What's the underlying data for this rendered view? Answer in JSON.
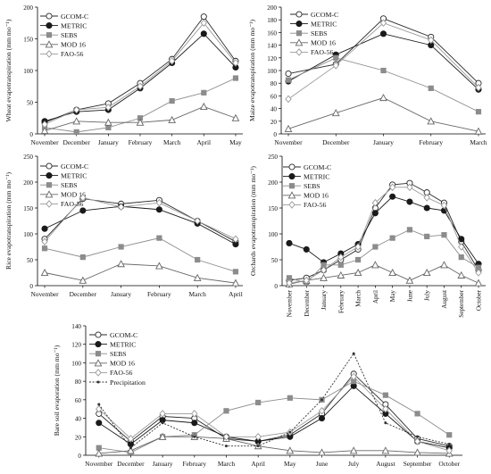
{
  "chart_data": [
    {
      "type": "line",
      "ylabel": "Wheat evapotranspiration (mm mo⁻¹)",
      "xlabel": "",
      "categories": [
        "November",
        "December",
        "January",
        "February",
        "March",
        "April",
        "May"
      ],
      "ylim": [
        0,
        200
      ],
      "yticks": [
        0,
        50,
        100,
        150,
        200
      ],
      "legend": "top-left",
      "series": [
        {
          "name": "GCOM-C",
          "marker": "circle-open",
          "values": [
            18,
            38,
            48,
            80,
            118,
            185,
            115
          ]
        },
        {
          "name": "METRIC",
          "marker": "circle-filled",
          "values": [
            20,
            35,
            38,
            72,
            112,
            158,
            105
          ]
        },
        {
          "name": "SEBS",
          "marker": "square-filled",
          "values": [
            10,
            3,
            10,
            25,
            52,
            65,
            88
          ]
        },
        {
          "name": "MOD 16",
          "marker": "triangle-open",
          "values": [
            5,
            20,
            18,
            18,
            22,
            43,
            25
          ]
        },
        {
          "name": "FAO-56",
          "marker": "diamond-open",
          "values": [
            15,
            38,
            42,
            75,
            115,
            175,
            112
          ]
        }
      ]
    },
    {
      "type": "line",
      "ylabel": "Maize evapotranspiration (mm mo⁻¹)",
      "xlabel": "",
      "categories": [
        "November",
        "December",
        "January",
        "February",
        "March"
      ],
      "ylim": [
        0,
        200
      ],
      "yticks": [
        0,
        20,
        40,
        60,
        80,
        100,
        120,
        140,
        160,
        180,
        200
      ],
      "legend": "top-left",
      "series": [
        {
          "name": "GCOM-C",
          "marker": "circle-open",
          "values": [
            95,
            110,
            182,
            153,
            80
          ]
        },
        {
          "name": "METRIC",
          "marker": "circle-filled",
          "values": [
            83,
            125,
            158,
            140,
            70
          ]
        },
        {
          "name": "SEBS",
          "marker": "square-filled",
          "values": [
            85,
            120,
            100,
            72,
            35
          ]
        },
        {
          "name": "MOD 16",
          "marker": "triangle-open",
          "values": [
            8,
            33,
            57,
            20,
            4
          ]
        },
        {
          "name": "FAO-56",
          "marker": "diamond-open",
          "values": [
            55,
            108,
            175,
            148,
            73
          ]
        }
      ]
    },
    {
      "type": "line",
      "ylabel": "Rice evapotranspiration (mm mo⁻¹)",
      "xlabel": "",
      "categories": [
        "November",
        "December",
        "January",
        "February",
        "March",
        "April"
      ],
      "ylim": [
        0,
        250
      ],
      "yticks": [
        0,
        50,
        100,
        150,
        200,
        250
      ],
      "legend": "top-left",
      "series": [
        {
          "name": "GCOM-C",
          "marker": "circle-open",
          "values": [
            90,
            168,
            158,
            165,
            125,
            85
          ]
        },
        {
          "name": "METRIC",
          "marker": "circle-filled",
          "values": [
            110,
            145,
            153,
            147,
            120,
            80
          ]
        },
        {
          "name": "SEBS",
          "marker": "square-filled",
          "values": [
            72,
            55,
            75,
            92,
            50,
            27
          ]
        },
        {
          "name": "MOD 16",
          "marker": "triangle-open",
          "values": [
            25,
            10,
            42,
            38,
            15,
            5
          ]
        },
        {
          "name": "FAO-56",
          "marker": "diamond-open",
          "values": [
            85,
            170,
            152,
            160,
            125,
            90
          ]
        }
      ]
    },
    {
      "type": "line",
      "ylabel": "Orchards evapotranspiration (mm mo⁻¹)",
      "xlabel": "",
      "categories": [
        "November",
        "December",
        "January",
        "February",
        "March",
        "April",
        "May",
        "June",
        "July",
        "August",
        "September",
        "October"
      ],
      "ylim": [
        0,
        250
      ],
      "yticks": [
        0,
        50,
        100,
        150,
        200,
        250
      ],
      "legend": "top-left",
      "series": [
        {
          "name": "GCOM-C",
          "marker": "circle-open",
          "values": [
            10,
            15,
            30,
            50,
            70,
            150,
            195,
            198,
            180,
            160,
            85,
            30
          ]
        },
        {
          "name": "METRIC",
          "marker": "circle-filled",
          "values": [
            82,
            70,
            45,
            62,
            80,
            140,
            172,
            162,
            150,
            145,
            90,
            42
          ]
        },
        {
          "name": "SEBS",
          "marker": "square-filled",
          "values": [
            15,
            5,
            40,
            40,
            50,
            75,
            92,
            108,
            95,
            98,
            55,
            35
          ]
        },
        {
          "name": "MOD 16",
          "marker": "triangle-open",
          "values": [
            3,
            10,
            15,
            20,
            25,
            40,
            25,
            10,
            25,
            40,
            20,
            5
          ]
        },
        {
          "name": "FAO-56",
          "marker": "diamond-open",
          "values": [
            5,
            10,
            30,
            55,
            75,
            160,
            190,
            190,
            170,
            155,
            75,
            25
          ]
        }
      ]
    },
    {
      "type": "line",
      "ylabel": "Bare soil evaporation (mm mo⁻¹)",
      "xlabel": "",
      "categories": [
        "November",
        "December",
        "January",
        "February",
        "March",
        "April",
        "May",
        "June",
        "July",
        "August",
        "September",
        "October"
      ],
      "ylim": [
        0,
        140
      ],
      "yticks": [
        0,
        20,
        40,
        60,
        80,
        100,
        120,
        140
      ],
      "legend": "top-left",
      "series": [
        {
          "name": "GCOM-C",
          "marker": "circle-open",
          "values": [
            45,
            15,
            42,
            40,
            18,
            15,
            22,
            45,
            88,
            55,
            18,
            10
          ]
        },
        {
          "name": "METRIC",
          "marker": "circle-filled",
          "values": [
            35,
            12,
            38,
            35,
            20,
            15,
            20,
            40,
            75,
            45,
            15,
            8
          ]
        },
        {
          "name": "SEBS",
          "marker": "square-filled",
          "values": [
            8,
            3,
            20,
            22,
            48,
            57,
            62,
            60,
            80,
            65,
            45,
            22
          ]
        },
        {
          "name": "MOD 16",
          "marker": "triangle-open",
          "values": [
            2,
            5,
            20,
            20,
            18,
            10,
            5,
            3,
            5,
            5,
            3,
            2
          ]
        },
        {
          "name": "FAO-56",
          "marker": "diamond-open",
          "values": [
            50,
            18,
            45,
            45,
            20,
            20,
            25,
            48,
            85,
            50,
            15,
            5
          ]
        },
        {
          "name": "Precipitation",
          "marker": "dot-small",
          "values": [
            55,
            8,
            35,
            20,
            10,
            10,
            25,
            60,
            110,
            35,
            20,
            12
          ]
        }
      ]
    }
  ],
  "styles": {
    "series_colors": {
      "GCOM-C": "#2a2a2a",
      "METRIC": "#1a1a1a",
      "SEBS": "#8c8c8c",
      "MOD 16": "#666666",
      "FAO-56": "#9a9a9a",
      "Precipitation": "#333333"
    },
    "precipitation_dashed": true
  }
}
